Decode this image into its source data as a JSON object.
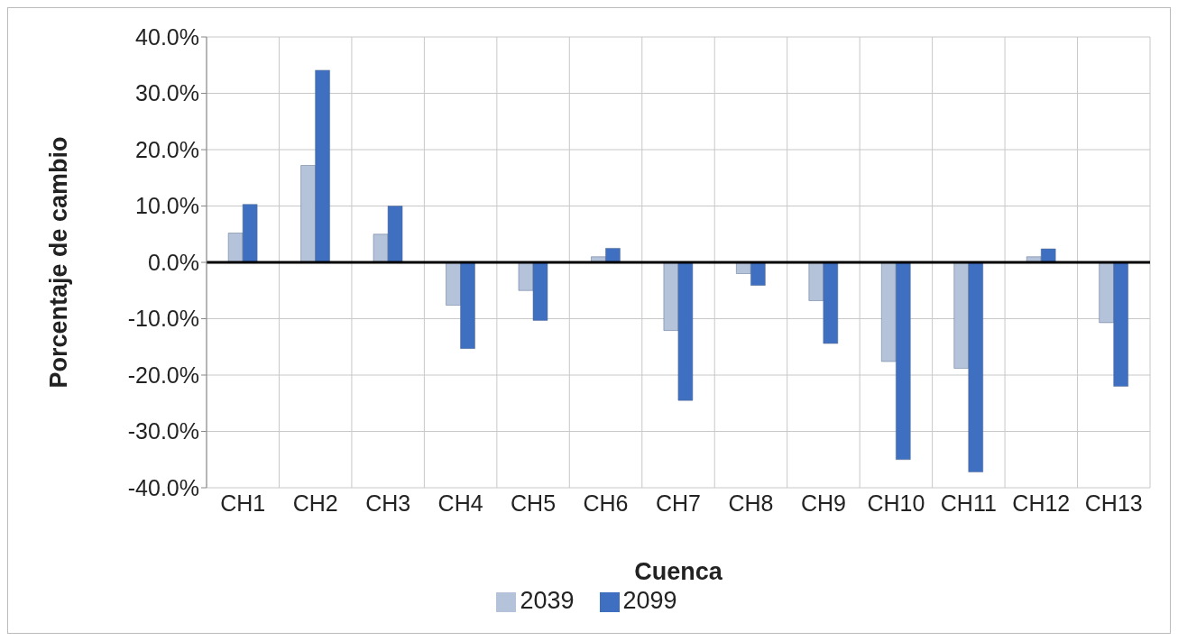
{
  "chart_data": {
    "type": "bar",
    "xlabel": "Cuenca",
    "ylabel": "Porcentaje de cambio",
    "categories": [
      "CH1",
      "CH2",
      "CH3",
      "CH4",
      "CH5",
      "CH6",
      "CH7",
      "CH8",
      "CH9",
      "CH10",
      "CH11",
      "CH12",
      "CH13"
    ],
    "series": [
      {
        "name": "2039",
        "color": "#b4c3da",
        "values": [
          5.2,
          17.2,
          5.0,
          -7.6,
          -5.0,
          1.0,
          -12.1,
          -2.0,
          -6.8,
          -17.6,
          -18.8,
          1.0,
          -10.7
        ]
      },
      {
        "name": "2099",
        "color": "#3f6fc0",
        "values": [
          10.3,
          34.1,
          10.0,
          -15.3,
          -10.3,
          2.5,
          -24.5,
          -4.1,
          -14.4,
          -35.0,
          -37.2,
          2.4,
          -22.0
        ]
      }
    ],
    "ylim": [
      -40,
      40
    ],
    "yticks": [
      {
        "value": -40,
        "label": "-40.0%"
      },
      {
        "value": -30,
        "label": "-30.0%"
      },
      {
        "value": -20,
        "label": "-20.0%"
      },
      {
        "value": -10,
        "label": "-10.0%"
      },
      {
        "value": 0,
        "label": "0.0%"
      },
      {
        "value": 10,
        "label": "10.0%"
      },
      {
        "value": 20,
        "label": "20.0%"
      },
      {
        "value": 30,
        "label": "30.0%"
      },
      {
        "value": 40,
        "label": "40.0%"
      }
    ],
    "ref_lines": [
      {
        "axis": "y",
        "value": 0,
        "color": "#000000"
      }
    ],
    "grid": true,
    "legend": "bottom"
  }
}
